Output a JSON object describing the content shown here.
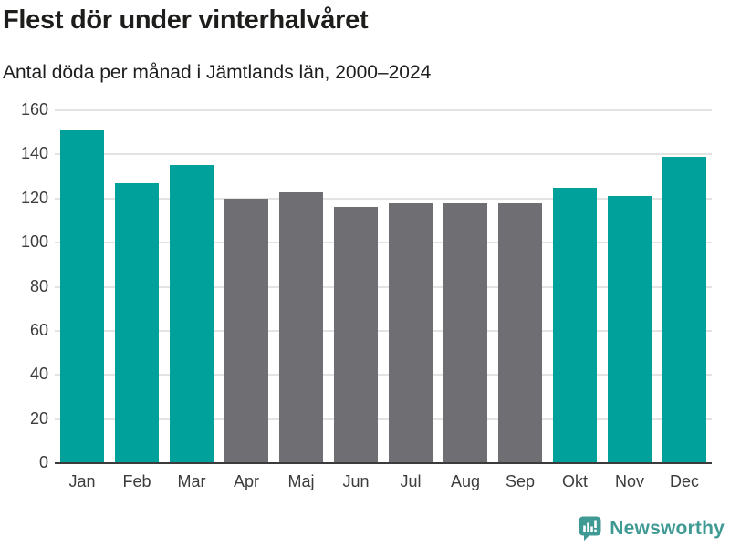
{
  "chart_data": {
    "type": "bar",
    "title": "Flest dör under vinterhalvåret",
    "subtitle": "Antal döda per månad i Jämtlands län, 2000–2024",
    "categories": [
      "Jan",
      "Feb",
      "Mar",
      "Apr",
      "Maj",
      "Jun",
      "Jul",
      "Aug",
      "Sep",
      "Okt",
      "Nov",
      "Dec"
    ],
    "values": [
      151,
      127,
      135,
      120,
      123,
      116,
      118,
      118,
      118,
      125,
      121,
      139
    ],
    "bar_groups": [
      "winter",
      "winter",
      "winter",
      "summer",
      "summer",
      "summer",
      "summer",
      "summer",
      "summer",
      "winter",
      "winter",
      "winter"
    ],
    "colors": {
      "winter": "#00a19a",
      "summer": "#6e6e73"
    },
    "xlabel": "",
    "ylabel": "",
    "ylim": [
      0,
      160
    ],
    "yticks": [
      0,
      20,
      40,
      60,
      80,
      100,
      120,
      140,
      160
    ],
    "grid": true,
    "gridline_color": "#e3e3e3",
    "axis_color": "#3b3b3b",
    "tick_label_color": "#3c3c3c",
    "legend": false
  },
  "footer": {
    "brand": "Newsworthy",
    "brand_color": "#3f9a94",
    "logo_icon": "speech-bubble-bar-chart"
  }
}
